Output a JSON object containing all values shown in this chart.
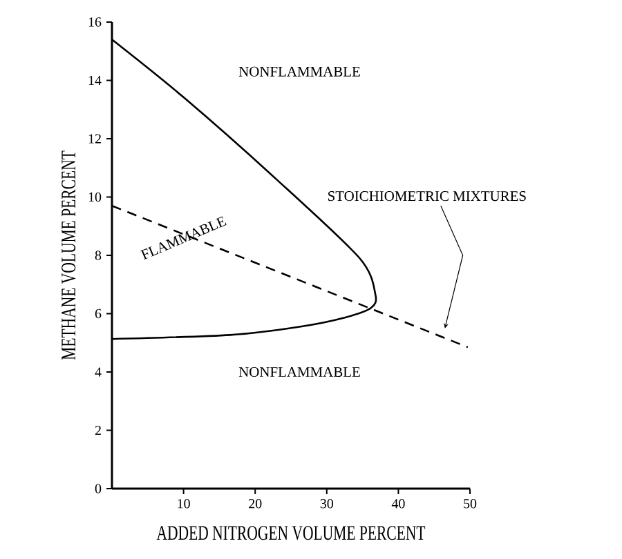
{
  "chart_data": {
    "type": "line",
    "xlabel": "ADDED NITROGEN VOLUME PERCENT",
    "ylabel": "METHANE VOLUME PERCENT",
    "xlim": [
      0,
      50
    ],
    "ylim": [
      0,
      16
    ],
    "xticks": [
      10,
      20,
      30,
      40,
      50
    ],
    "yticks": [
      0,
      2,
      4,
      6,
      8,
      10,
      12,
      14,
      16
    ],
    "grid": false,
    "series": [
      {
        "color": "#000000",
        "line_style": "solid",
        "x": [
          0,
          10.1,
          23,
          34.6,
          36.8,
          36.2,
          32.6,
          26.2,
          16.5,
          0
        ],
        "values": [
          15.4,
          13.4,
          10.6,
          7.9,
          6.65,
          6.2,
          5.87,
          5.55,
          5.27,
          5.13
        ]
      },
      {
        "color": "#000000",
        "line_style": "dashed",
        "x": [
          0,
          49.7
        ],
        "values": [
          9.7,
          4.85
        ]
      }
    ],
    "annotations": [
      "NONFLAMMABLE",
      "FLAMMABLE",
      "NONFLAMMABLE",
      "STOICHIOMETRIC MIXTURES"
    ]
  }
}
